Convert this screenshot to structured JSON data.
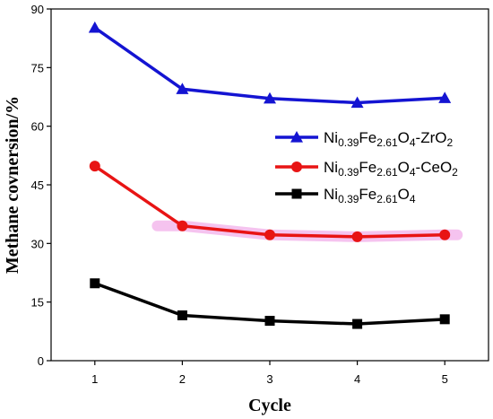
{
  "chart_data": {
    "type": "line",
    "xlabel": "Cycle",
    "ylabel": "Methane covnersion/%",
    "x": [
      1,
      2,
      3,
      4,
      5
    ],
    "x_ticks": [
      "1",
      "2",
      "3",
      "4",
      "5"
    ],
    "xlim": [
      0.5,
      5.5
    ],
    "ylim": [
      0,
      90
    ],
    "y_ticks": [
      "0",
      "15",
      "30",
      "45",
      "60",
      "75",
      "90"
    ],
    "grid": false,
    "legend_position": "right",
    "series": [
      {
        "id": "zro2",
        "marker": "triangle",
        "color": "#1414d2",
        "label_parts": [
          {
            "t": "Ni",
            "s": "n"
          },
          {
            "t": "0.39",
            "s": "sub"
          },
          {
            "t": "Fe",
            "s": "n"
          },
          {
            "t": "2.61",
            "s": "sub"
          },
          {
            "t": "O",
            "s": "n"
          },
          {
            "t": "4",
            "s": "sub"
          },
          {
            "t": "-ZrO",
            "s": "n"
          },
          {
            "t": "2",
            "s": "sub"
          }
        ],
        "values": [
          85.2,
          69.5,
          67.1,
          66.0,
          67.2
        ]
      },
      {
        "id": "ceo2",
        "marker": "circle",
        "color": "#e81414",
        "label_parts": [
          {
            "t": "Ni",
            "s": "n"
          },
          {
            "t": "0.39",
            "s": "sub"
          },
          {
            "t": "Fe",
            "s": "n"
          },
          {
            "t": "2.61",
            "s": "sub"
          },
          {
            "t": "O",
            "s": "n"
          },
          {
            "t": "4",
            "s": "sub"
          },
          {
            "t": "-CeO",
            "s": "n"
          },
          {
            "t": "2",
            "s": "sub"
          }
        ],
        "values": [
          49.8,
          34.5,
          32.2,
          31.7,
          32.2
        ]
      },
      {
        "id": "base",
        "marker": "square",
        "color": "#000000",
        "label_parts": [
          {
            "t": "Ni",
            "s": "n"
          },
          {
            "t": "0.39",
            "s": "sub"
          },
          {
            "t": "Fe",
            "s": "n"
          },
          {
            "t": "2.61",
            "s": "sub"
          },
          {
            "t": "O",
            "s": "n"
          },
          {
            "t": "4",
            "s": "sub"
          }
        ],
        "values": [
          19.8,
          11.6,
          10.2,
          9.4,
          10.6
        ]
      }
    ]
  }
}
